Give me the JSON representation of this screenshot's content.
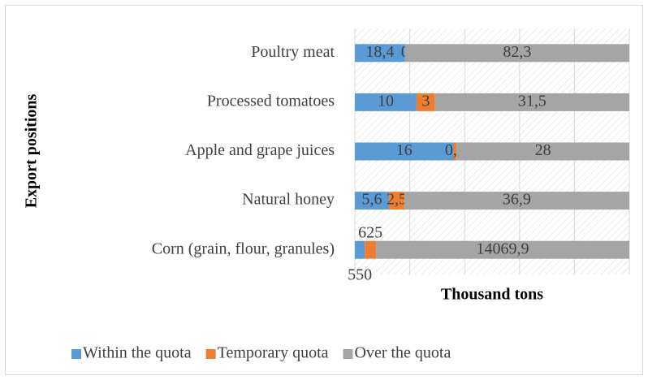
{
  "chart_data": {
    "type": "bar",
    "orientation": "horizontal",
    "stacking": "percent",
    "xlabel": "Thousand tons",
    "ylabel": "Export positions",
    "categories": [
      "Poultry meat",
      "Processed tomatoes",
      "Apple and grape juices",
      "Natural honey",
      "Corn (grain, flour, granules)"
    ],
    "series": [
      {
        "name": "Within the quota",
        "color": "#5b9bd5",
        "values": [
          18.4,
          10,
          16,
          5.6,
          550
        ],
        "value_labels": [
          "18,4",
          "10",
          "16",
          "5,6",
          "550"
        ]
      },
      {
        "name": "Temporary quota",
        "color": "#ed7d31",
        "values": [
          0,
          3,
          0.5,
          2.5,
          625
        ],
        "value_labels": [
          "0",
          "3",
          "0,5",
          "2,5",
          "625"
        ]
      },
      {
        "name": "Over the quota",
        "color": "#a5a5a5",
        "values": [
          82.3,
          31.5,
          28,
          36.9,
          14069.9
        ],
        "value_labels": [
          "82,3",
          "31,5",
          "28",
          "36,9",
          "14069,9"
        ]
      }
    ],
    "xlim": [
      0,
      100
    ],
    "xticks": [
      0,
      20,
      40,
      60,
      80,
      100
    ],
    "tick_labels": false,
    "grid": true,
    "legend": "bottom"
  }
}
